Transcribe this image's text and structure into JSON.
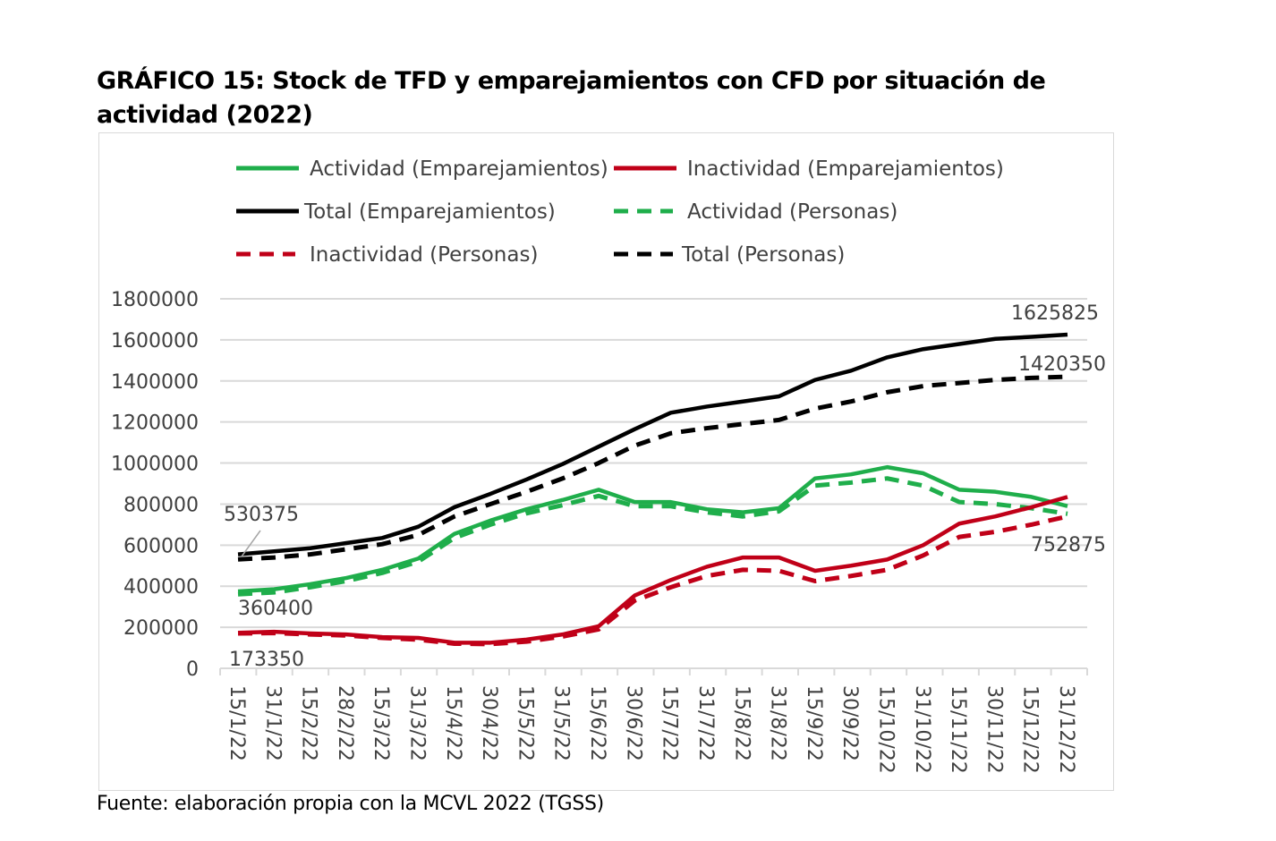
{
  "title": "GRÁFICO 15:  Stock de TFD y emparejamientos con CFD por situación de actividad (2022)",
  "source": "Fuente: elaboración propia con la MCVL 2022 (TGSS)",
  "chart_data": {
    "type": "line",
    "title": "",
    "xlabel": "",
    "ylabel": "",
    "ylim": [
      0,
      1800000
    ],
    "yticks": [
      "0",
      "200000",
      "400000",
      "600000",
      "800000",
      "1000000",
      "1200000",
      "1400000",
      "1600000",
      "1800000"
    ],
    "grid": true,
    "legend_position": "top",
    "categories": [
      "15/1/22",
      "31/1/22",
      "15/2/22",
      "28/2/22",
      "15/3/22",
      "31/3/22",
      "15/4/22",
      "30/4/22",
      "15/5/22",
      "31/5/22",
      "15/6/22",
      "30/6/22",
      "15/7/22",
      "31/7/22",
      "15/8/22",
      "31/8/22",
      "15/9/22",
      "30/9/22",
      "15/10/22",
      "31/10/22",
      "15/11/22",
      "30/11/22",
      "15/12/22",
      "31/12/22"
    ],
    "series": [
      {
        "name": "Actividad (Emparejamientos)",
        "color": "#1fae4b",
        "dash": false,
        "values": [
          375000,
          385000,
          410000,
          440000,
          480000,
          535000,
          655000,
          720000,
          775000,
          820000,
          870000,
          810000,
          810000,
          775000,
          760000,
          780000,
          925000,
          945000,
          980000,
          950000,
          870000,
          860000,
          835000,
          790000
        ]
      },
      {
        "name": "Inactividad (Emparejamientos)",
        "color": "#c00018",
        "dash": false,
        "values": [
          173350,
          178000,
          170000,
          165000,
          152000,
          148000,
          125000,
          125000,
          140000,
          165000,
          205000,
          355000,
          430000,
          495000,
          540000,
          540000,
          475000,
          500000,
          530000,
          600000,
          705000,
          740000,
          785000,
          835000
        ]
      },
      {
        "name": "Total  (Emparejamientos)",
        "color": "#000000",
        "dash": false,
        "values": [
          555000,
          570000,
          585000,
          610000,
          635000,
          690000,
          785000,
          850000,
          920000,
          995000,
          1080000,
          1165000,
          1245000,
          1275000,
          1300000,
          1325000,
          1405000,
          1450000,
          1515000,
          1555000,
          1580000,
          1605000,
          1615000,
          1625825
        ]
      },
      {
        "name": "Actividad (Personas)",
        "color": "#1fae4b",
        "dash": true,
        "values": [
          360400,
          370000,
          395000,
          425000,
          465000,
          520000,
          635000,
          700000,
          755000,
          795000,
          840000,
          790000,
          790000,
          760000,
          740000,
          765000,
          890000,
          905000,
          925000,
          890000,
          810000,
          800000,
          780000,
          752875
        ]
      },
      {
        "name": "Inactividad (Personas)",
        "color": "#c00018",
        "dash": true,
        "values": [
          169975,
          172000,
          165000,
          160000,
          148000,
          140000,
          120000,
          118000,
          130000,
          155000,
          190000,
          330000,
          395000,
          450000,
          480000,
          475000,
          425000,
          450000,
          480000,
          550000,
          640000,
          665000,
          700000,
          740000
        ]
      },
      {
        "name": "Total  (Personas)",
        "color": "#000000",
        "dash": true,
        "values": [
          530375,
          540000,
          555000,
          580000,
          605000,
          650000,
          740000,
          800000,
          860000,
          925000,
          1000000,
          1085000,
          1145000,
          1170000,
          1190000,
          1210000,
          1265000,
          1300000,
          1345000,
          1375000,
          1390000,
          1405000,
          1415000,
          1420350
        ]
      }
    ],
    "annotations": [
      "530375",
      "360400",
      "173350",
      "1625825",
      "1420350",
      "752875"
    ]
  }
}
